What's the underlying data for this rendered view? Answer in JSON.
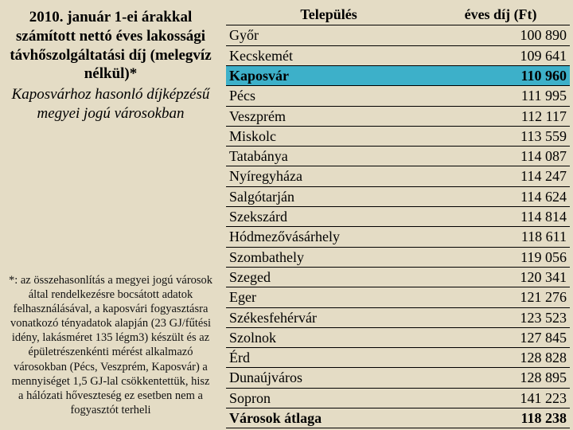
{
  "left": {
    "title_bold": "2010. január 1-ei árakkal számított nettó éves lakossági távhőszolgáltatási díj (melegvíz nélkül)*",
    "title_italic": "Kaposvárhoz hasonló díjképzésű megyei jogú városokban",
    "footnote": "*: az összehasonlítás a megyei jogú városok által rendelkezésre bocsátott adatok felhasználásával, a kaposvári fogyasztásra vonatkozó tényadatok alapján (23 GJ/fűtési idény, lakásméret 135 légm3) készült és az épületrészenkénti mérést alkalmazó városokban (Pécs, Veszprém, Kaposvár) a mennyiséget 1,5 GJ-lal csökkentettük, hisz a hálózati hőveszteség ez esetben nem a fogyasztót terheli"
  },
  "table": {
    "header_city": "Település",
    "header_fee": "éves díj (Ft)",
    "rows": [
      {
        "city": "Győr",
        "fee": "100 890",
        "hl": false,
        "bold": false
      },
      {
        "city": "Kecskemét",
        "fee": "109 641",
        "hl": false,
        "bold": false
      },
      {
        "city": "Kaposvár",
        "fee": "110 960",
        "hl": true,
        "bold": true
      },
      {
        "city": "Pécs",
        "fee": "111 995",
        "hl": false,
        "bold": false
      },
      {
        "city": "Veszprém",
        "fee": "112 117",
        "hl": false,
        "bold": false
      },
      {
        "city": "Miskolc",
        "fee": "113 559",
        "hl": false,
        "bold": false
      },
      {
        "city": "Tatabánya",
        "fee": "114 087",
        "hl": false,
        "bold": false
      },
      {
        "city": "Nyíregyháza",
        "fee": "114 247",
        "hl": false,
        "bold": false
      },
      {
        "city": "Salgótarján",
        "fee": "114 624",
        "hl": false,
        "bold": false
      },
      {
        "city": "Szekszárd",
        "fee": "114 814",
        "hl": false,
        "bold": false
      },
      {
        "city": "Hódmezővásárhely",
        "fee": "118 611",
        "hl": false,
        "bold": false
      },
      {
        "city": "Szombathely",
        "fee": "119 056",
        "hl": false,
        "bold": false
      },
      {
        "city": "Szeged",
        "fee": "120 341",
        "hl": false,
        "bold": false
      },
      {
        "city": "Eger",
        "fee": "121 276",
        "hl": false,
        "bold": false
      },
      {
        "city": "Székesfehérvár",
        "fee": "123 523",
        "hl": false,
        "bold": false
      },
      {
        "city": "Szolnok",
        "fee": "127 845",
        "hl": false,
        "bold": false
      },
      {
        "city": "Érd",
        "fee": "128 828",
        "hl": false,
        "bold": false
      },
      {
        "city": "Dunaújváros",
        "fee": "128 895",
        "hl": false,
        "bold": false
      },
      {
        "city": "Sopron",
        "fee": "141 223",
        "hl": false,
        "bold": false
      },
      {
        "city": "Városok átlaga",
        "fee": "118 238",
        "hl": false,
        "bold": true
      }
    ]
  },
  "colors": {
    "background": "#e4dcc5",
    "highlight": "#3db0c9",
    "border": "#000000",
    "text": "#000000"
  }
}
